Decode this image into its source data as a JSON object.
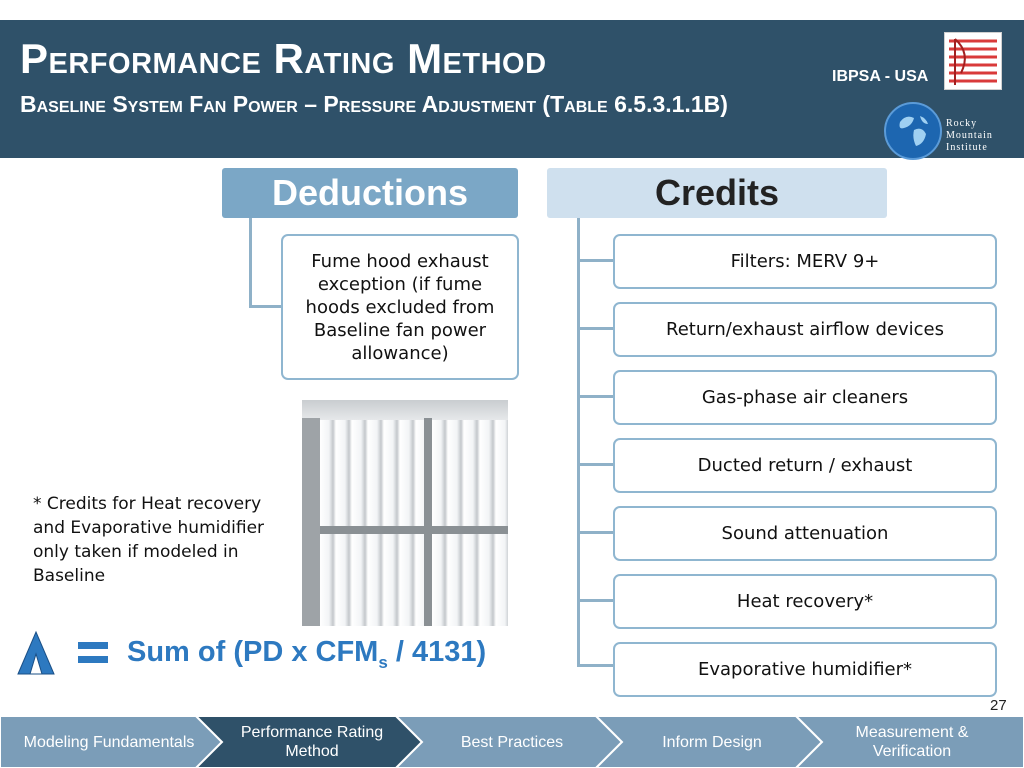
{
  "header": {
    "title": "Performance Rating Method",
    "subtitle": "Baseline System Fan Power – Pressure Adjustment (Table 6.5.3.1.1B)",
    "org": "IBPSA - USA",
    "logo_text": [
      "Rocky",
      "Mountain",
      "Institute"
    ]
  },
  "deductions": {
    "label": "Deductions",
    "items": [
      "Fume hood exhaust exception (if fume hoods excluded from Baseline fan power allowance)"
    ]
  },
  "credits": {
    "label": "Credits",
    "items": [
      "Filters: MERV 9+",
      "Return/exhaust airflow devices",
      "Gas-phase air cleaners",
      "Ducted return / exhaust",
      "Sound attenuation",
      "Heat recovery*",
      "Evaporative humidifier*"
    ]
  },
  "footnote": "* Credits for Heat recovery and Evaporative humidifier only taken if modeled in Baseline",
  "formula": {
    "prefix": "Sum of (PD x CFM",
    "subscript": "s",
    "suffix": " / 4131)"
  },
  "page_number": "27",
  "nav": {
    "tabs": [
      {
        "label": "Modeling Fundamentals",
        "active": false
      },
      {
        "label": "Performance Rating Method",
        "active": true
      },
      {
        "label": "Best Practices",
        "active": false
      },
      {
        "label": "Inform Design",
        "active": false
      },
      {
        "label": "Measurement & Verification",
        "active": false
      }
    ]
  },
  "colors": {
    "header_bg": "#2f5169",
    "deductions_head": "#7ba7c6",
    "credits_head": "#cfe0ee",
    "formula_text": "#2d79c0",
    "nav_inactive": "#7b9db8",
    "nav_active": "#2f5169"
  },
  "icons": {
    "flag_logo": "flag-icon",
    "rmi_logo": "globe-icon",
    "formula_symbol": "delta-p-icon"
  }
}
